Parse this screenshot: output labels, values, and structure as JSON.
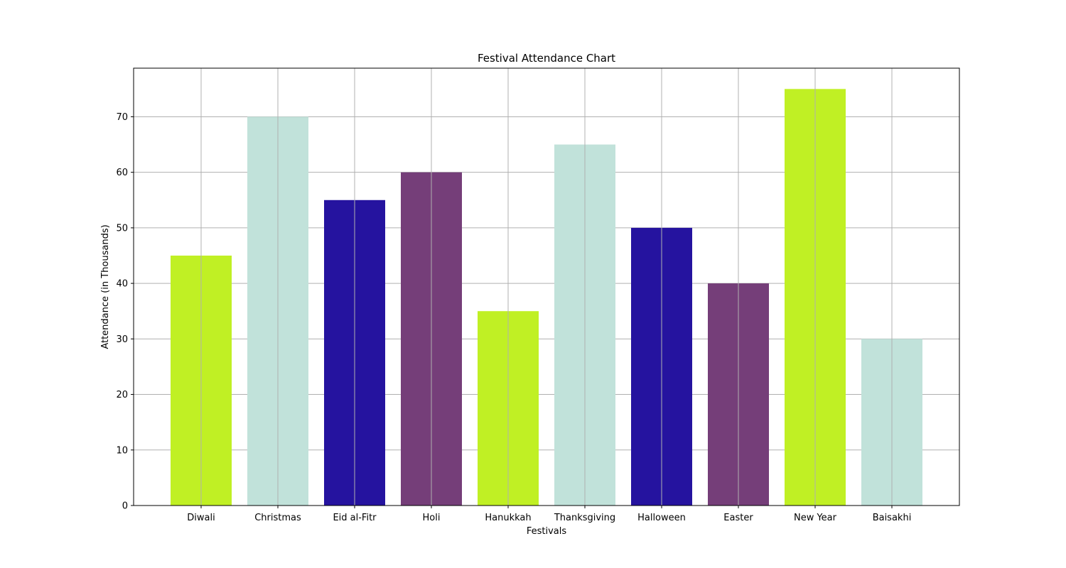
{
  "chart_data": {
    "type": "bar",
    "title": "Festival Attendance Chart",
    "xlabel": "Festivals",
    "ylabel": "Attendance (in Thousands)",
    "categories": [
      "Diwali",
      "Christmas",
      "Eid al-Fitr",
      "Holi",
      "Hanukkah",
      "Thanksgiving",
      "Halloween",
      "Easter",
      "New Year",
      "Baisakhi"
    ],
    "values": [
      45,
      70,
      55,
      60,
      35,
      65,
      50,
      40,
      75,
      30
    ],
    "colors": [
      "#c0f024",
      "#c1e2da",
      "#25139f",
      "#753e79",
      "#c0f024",
      "#c1e2da",
      "#25139f",
      "#753e79",
      "#c0f024",
      "#c1e2da"
    ],
    "ylim": [
      0,
      78.75
    ],
    "yticks": [
      0,
      10,
      20,
      30,
      40,
      50,
      60,
      70
    ],
    "grid": true
  }
}
